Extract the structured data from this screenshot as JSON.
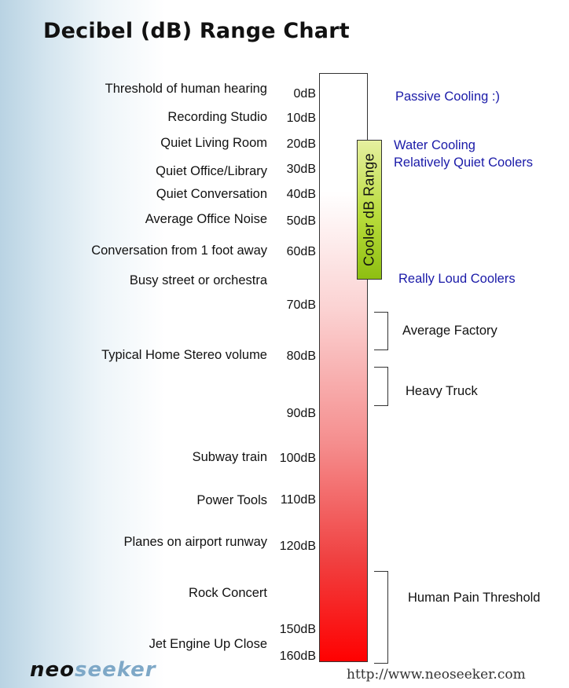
{
  "chart_data": {
    "type": "table",
    "title": "Decibel (dB) Range Chart",
    "levels": [
      {
        "label": "Threshold of human hearing",
        "db": "0dB"
      },
      {
        "label": "Recording Studio",
        "db": "10dB"
      },
      {
        "label": "Quiet Living Room",
        "db": "20dB"
      },
      {
        "label": "Quiet Office/Library",
        "db": "30dB"
      },
      {
        "label": "Quiet Conversation",
        "db": "40dB"
      },
      {
        "label": "Average Office Noise",
        "db": "50dB"
      },
      {
        "label": "Conversation from 1 foot away",
        "db": "60dB"
      },
      {
        "label": "Busy street or orchestra",
        "db": ""
      },
      {
        "label": "",
        "db": "70dB"
      },
      {
        "label": "Typical Home Stereo volume",
        "db": "80dB"
      },
      {
        "label": "",
        "db": "90dB"
      },
      {
        "label": "Subway train",
        "db": "100dB"
      },
      {
        "label": "Power Tools",
        "db": "110dB"
      },
      {
        "label": "Planes on airport runway",
        "db": "120dB"
      },
      {
        "label": "Rock Concert",
        "db": ""
      },
      {
        "label": "",
        "db": "150dB"
      },
      {
        "label": "Jet Engine Up Close",
        "db": "160dB"
      }
    ],
    "cooler_range_label": "Cooler dB Range",
    "cooling_labels": {
      "passive": "Passive Cooling :)",
      "water_line1": "Water Cooling",
      "water_line2": "Relatively Quiet Coolers",
      "loud": "Really Loud Coolers"
    },
    "ranges": [
      {
        "label": "Average Factory"
      },
      {
        "label": "Heavy Truck"
      },
      {
        "label": "Human Pain Threshold"
      }
    ],
    "colors": {
      "bar_top": "#ffffff",
      "bar_bottom": "#ff0000",
      "cooler_fill": "#a6d12a",
      "cooling_text": "#1a1aa8"
    }
  },
  "branding": {
    "logo_part1": "neo",
    "logo_part2": "seeker",
    "url": "http://www.neoseeker.com"
  }
}
